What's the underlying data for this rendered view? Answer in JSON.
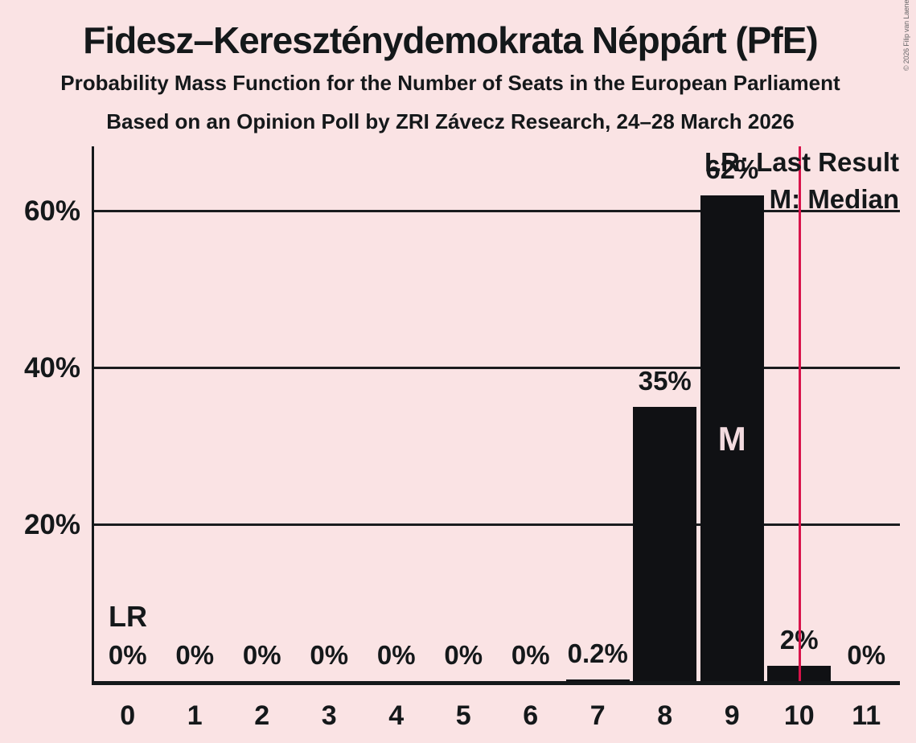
{
  "title": "Fidesz–Kereszténydemokrata Néppárt (PfE)",
  "subtitle1": "Probability Mass Function for the Number of Seats in the European Parliament",
  "subtitle2": "Based on an Opinion Poll by ZRI Závecz Research, 24–28 March 2026",
  "copyright": "© 2026 Filip van Laenen",
  "legend": {
    "lr": "LR: Last Result",
    "m": "M: Median"
  },
  "annotations": {
    "lr": "LR",
    "median": "M"
  },
  "colors": {
    "background": "#fae3e4",
    "bar": "#101114",
    "text": "#14181a",
    "grid": "#1a1c1e",
    "red_line": "#d8134a",
    "median_letter": "#f3dbdf",
    "copyright_text": "#6a686a"
  },
  "chart_data": {
    "type": "bar",
    "title": "Fidesz–Kereszténydemokrata Néppárt (PfE)",
    "categories": [
      "0",
      "1",
      "2",
      "3",
      "4",
      "5",
      "6",
      "7",
      "8",
      "9",
      "10",
      "11"
    ],
    "values": [
      0,
      0,
      0,
      0,
      0,
      0,
      0,
      0.2,
      35,
      62,
      2,
      0
    ],
    "bar_labels": [
      "0%",
      "0%",
      "0%",
      "0%",
      "0%",
      "0%",
      "0%",
      "0.2%",
      "35%",
      "62%",
      "2%",
      "0%"
    ],
    "xlabel": "",
    "ylabel": "",
    "ylim": [
      0,
      68.2
    ],
    "ytick_values": [
      20,
      40,
      60
    ],
    "ytick_labels": [
      "20%",
      "40%",
      "60%"
    ],
    "minor_grid_values": [
      10,
      30,
      50
    ],
    "grid": "major solid, minor dotted, horizontal only",
    "legend_position": "top-right",
    "median_seat": 9,
    "last_result_line_position": 10.5
  }
}
